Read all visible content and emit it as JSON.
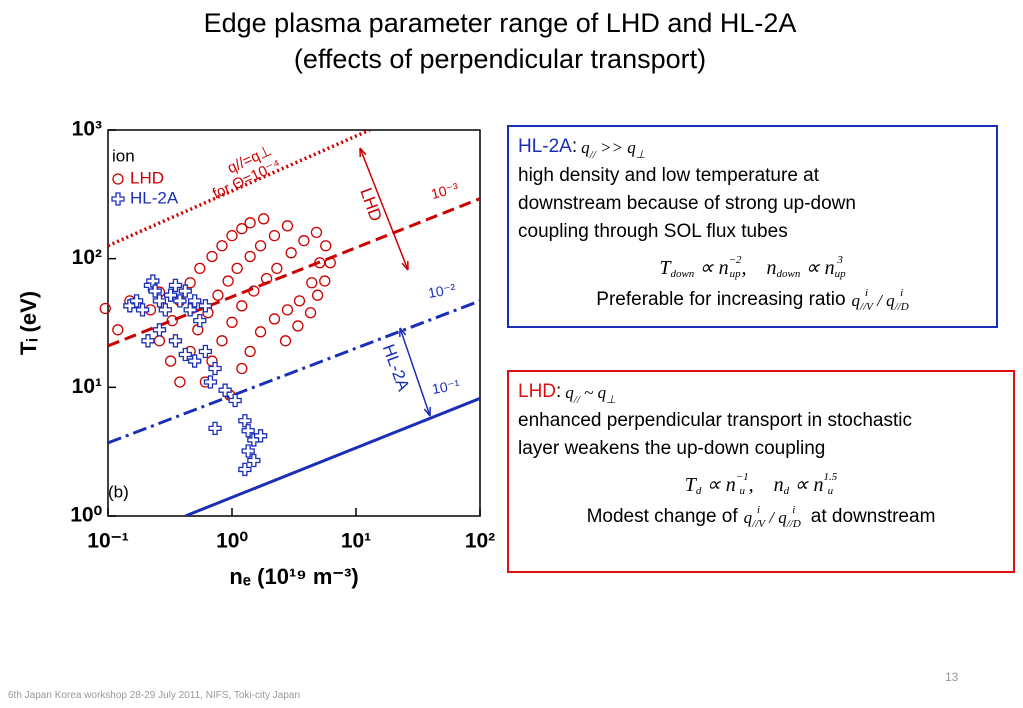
{
  "header": {
    "title": "Edge plasma parameter range of LHD and HL-2A",
    "subtitle": "(effects of perpendicular transport)"
  },
  "chart_data": {
    "type": "scatter",
    "xlabel": "nₑ (10¹⁹ m⁻³)",
    "ylabel": "Tᵢ (eV)",
    "xscale": "log",
    "yscale": "log",
    "xlim": [
      0.1,
      100
    ],
    "ylim": [
      1,
      1000
    ],
    "xticks": [
      {
        "value": 0.1,
        "label": "10⁻¹"
      },
      {
        "value": 1,
        "label": "10⁰"
      },
      {
        "value": 10,
        "label": "10¹"
      },
      {
        "value": 100,
        "label": "10²"
      }
    ],
    "yticks": [
      {
        "value": 1,
        "label": "10⁰"
      },
      {
        "value": 10,
        "label": "10¹"
      },
      {
        "value": 100,
        "label": "10²"
      },
      {
        "value": 1000,
        "label": "10³"
      }
    ],
    "legend_title": "ion",
    "series": [
      {
        "name": "LHD",
        "color": "#cc0000",
        "marker": "circle",
        "x": [
          0.33,
          0.38,
          0.46,
          0.55,
          0.69,
          0.83,
          1.0,
          1.2,
          1.4,
          1.8,
          0.46,
          0.53,
          0.64,
          0.77,
          0.93,
          1.1,
          1.4,
          1.7,
          2.2,
          2.8,
          0.61,
          0.69,
          0.83,
          1.0,
          1.2,
          1.5,
          1.9,
          2.3,
          3.0,
          3.8,
          4.8,
          0.96,
          1.2,
          1.4,
          1.7,
          2.2,
          2.8,
          3.5,
          4.4,
          5.1,
          5.7,
          2.7,
          3.4,
          4.3,
          4.9,
          5.6,
          6.2,
          0.095,
          0.12,
          0.15,
          0.22,
          0.26,
          0.32,
          0.38,
          0.26
        ],
        "values": [
          33,
          47,
          65,
          84,
          104,
          126,
          151,
          171,
          190,
          204,
          19,
          28,
          38,
          52,
          67,
          84,
          104,
          126,
          151,
          180,
          11,
          16,
          23,
          32,
          43,
          56,
          70,
          84,
          111,
          138,
          160,
          8.7,
          14,
          19,
          27,
          34,
          40,
          47,
          65,
          93,
          126,
          23,
          30,
          38,
          52,
          67,
          93,
          41,
          28,
          47,
          40,
          23,
          16,
          11,
          55
        ]
      },
      {
        "name": "HL-2A",
        "color": "#1a2fb8",
        "marker": "cross",
        "x": [
          0.15,
          0.17,
          0.19,
          0.22,
          0.23,
          0.24,
          0.26,
          0.29,
          0.32,
          0.35,
          0.38,
          0.42,
          0.46,
          0.5,
          0.55,
          0.61,
          0.21,
          0.26,
          0.35,
          0.42,
          0.5,
          0.61,
          0.67,
          0.73,
          0.88,
          1.06,
          0.73,
          1.27,
          1.35,
          1.5,
          1.7,
          1.35,
          1.5,
          1.27
        ],
        "values": [
          43,
          47,
          40,
          62,
          67,
          56,
          47,
          40,
          52,
          62,
          47,
          56,
          40,
          47,
          33,
          43,
          23,
          28,
          23,
          18,
          16,
          19,
          11,
          14,
          9.5,
          7.9,
          4.8,
          5.5,
          4.6,
          3.9,
          4.2,
          3.2,
          2.7,
          2.3
        ]
      }
    ],
    "lines": [
      {
        "x": [
          0.1,
          12.9
        ],
        "values": [
          126,
          1000
        ],
        "color": "#cc0000",
        "style": "dotted"
      },
      {
        "x": [
          0.1,
          100
        ],
        "values": [
          21,
          293
        ],
        "color": "#cc0000",
        "style": "dashed"
      },
      {
        "x": [
          0.1,
          100
        ],
        "values": [
          3.7,
          47
        ],
        "color": "#1a2fb8",
        "style": "dashdot"
      },
      {
        "x": [
          0.42,
          100
        ],
        "values": [
          1,
          8.2
        ],
        "color": "#1a2fb8",
        "style": "solid"
      }
    ],
    "annotations": [
      "q//=q⊥",
      "for Θ=10⁻⁴",
      "10⁻³",
      "10⁻²",
      "10⁻¹",
      "LHD",
      "HL-2A",
      "(b)"
    ]
  },
  "boxes": [
    {
      "label": "HL-2A",
      "colon": ":",
      "relation": [
        {
          "b": "q",
          "sub": "//"
        },
        {
          "b": " >> "
        },
        {
          "b": "q",
          "sub": "⊥"
        }
      ],
      "text": [
        "high density and low temperature at",
        "downstream because of strong up-down",
        "coupling through SOL flux tubes"
      ],
      "formula": [
        {
          "b": "T",
          "sub": "down"
        },
        {
          "b": " ∝ "
        },
        {
          "b": "n",
          "sub": "up",
          "sup": "−2"
        },
        {
          "b": ",    "
        },
        {
          "b": "n",
          "sub": "down"
        },
        {
          "b": " ∝ "
        },
        {
          "b": "n",
          "sub": "up",
          "sup": "3"
        }
      ],
      "ratio_before": "Preferable for increasing ratio",
      "ratio": [
        {
          "b": "q",
          "sub": "//V",
          "sup": "i"
        },
        {
          "b": " / "
        },
        {
          "b": "q",
          "sub": "//D",
          "sup": "i"
        }
      ]
    },
    {
      "label": "LHD",
      "colon": ":",
      "relation": [
        {
          "b": "q",
          "sub": "//"
        },
        {
          "b": " ~ "
        },
        {
          "b": "q",
          "sub": "⊥"
        }
      ],
      "text": [
        "enhanced perpendicular transport in stochastic",
        "layer weakens the up-down coupling"
      ],
      "formula": [
        {
          "b": "T",
          "sub": "d"
        },
        {
          "b": " ∝ "
        },
        {
          "b": "n",
          "sub": "u",
          "sup": "−1"
        },
        {
          "b": ",    "
        },
        {
          "b": "n",
          "sub": "d"
        },
        {
          "b": " ∝ "
        },
        {
          "b": "n",
          "sub": "u",
          "sup": "1.5"
        }
      ],
      "ratio_before": "Modest change of",
      "ratio": [
        {
          "b": "q",
          "sub": "//V",
          "sup": "i"
        },
        {
          "b": " / "
        },
        {
          "b": "q",
          "sub": "//D",
          "sup": "i"
        }
      ],
      "ratio_after": "at downstream"
    }
  ],
  "footer": {
    "text": "6th Japan Korea workshop 28-29 July 2011, NIFS, Toki-city  Japan",
    "page": "13"
  }
}
